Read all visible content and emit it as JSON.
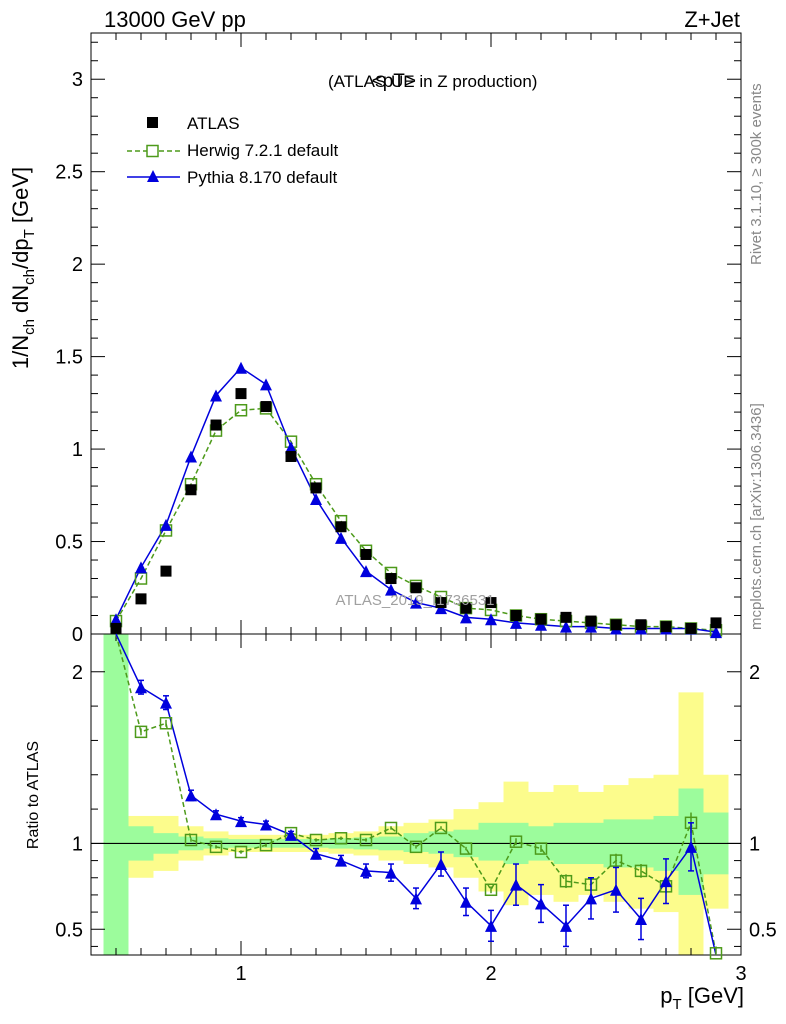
{
  "header": {
    "left": "13000 GeV pp",
    "right": "Z+Jet"
  },
  "side_labels": {
    "rivet": "Rivet 3.1.10, ≥ 300k events",
    "mcplots": "mcplots.cern.ch [arXiv:1306.3436]"
  },
  "watermark": "ATLAS_2019_I1736531",
  "colors": {
    "atlas": "#000000",
    "herwig": "#4d9a1a",
    "pythia": "#0000dd",
    "band_inner": "#9cfc9c",
    "band_outer": "#fcfc8c"
  },
  "chart_data": [
    {
      "type": "scatter",
      "panel": "main",
      "title": "<pT>",
      "subtitle": "(ATLAS UE in Z production)",
      "xlabel": "p_T [GeV]",
      "ylabel": "1/N_ch dN_ch/dp_T [GeV]",
      "xlim": [
        0.4,
        3.0
      ],
      "ylim": [
        0,
        3.25
      ],
      "yticks": [
        0,
        0.5,
        1,
        1.5,
        2,
        2.5,
        3
      ],
      "ytick_labels": [
        "0",
        "0.5",
        "1",
        "1.5",
        "2",
        "2.5",
        "3"
      ],
      "legend_placement": "top-left",
      "x": [
        0.5,
        0.6,
        0.7,
        0.8,
        0.9,
        1.0,
        1.1,
        1.2,
        1.3,
        1.4,
        1.5,
        1.6,
        1.7,
        1.8,
        1.9,
        2.0,
        2.1,
        2.2,
        2.3,
        2.4,
        2.5,
        2.6,
        2.7,
        2.8,
        2.9
      ],
      "series": [
        {
          "name": "ATLAS",
          "style": "square",
          "values": [
            0.03,
            0.19,
            0.34,
            0.78,
            1.13,
            1.3,
            1.23,
            0.96,
            0.79,
            0.58,
            0.43,
            0.3,
            0.25,
            0.17,
            0.14,
            0.17,
            0.1,
            0.08,
            0.09,
            0.07,
            0.05,
            0.05,
            0.04,
            0.03,
            0.06
          ]
        },
        {
          "name": "Herwig 7.2.1 default",
          "style": "dashed-open-square",
          "values": [
            0.07,
            0.3,
            0.56,
            0.81,
            1.1,
            1.21,
            1.22,
            1.04,
            0.81,
            0.61,
            0.45,
            0.33,
            0.26,
            0.2,
            0.14,
            0.13,
            0.1,
            0.08,
            0.07,
            0.06,
            0.05,
            0.04,
            0.04,
            0.03,
            0.02
          ]
        },
        {
          "name": "Pythia 8.170 default",
          "style": "solid-triangle",
          "values": [
            0.08,
            0.36,
            0.59,
            0.96,
            1.29,
            1.44,
            1.35,
            1.01,
            0.73,
            0.52,
            0.34,
            0.24,
            0.17,
            0.14,
            0.09,
            0.08,
            0.06,
            0.05,
            0.04,
            0.04,
            0.03,
            0.03,
            0.03,
            0.03,
            0.01
          ]
        }
      ]
    },
    {
      "type": "line",
      "panel": "ratio",
      "ylabel": "Ratio to ATLAS",
      "xlabel": "p_T [GeV]",
      "xlim": [
        0.4,
        3.0
      ],
      "ylim": [
        0.35,
        2.22
      ],
      "reference": 1.0,
      "xticks": [
        1,
        2,
        3
      ],
      "xtick_labels": [
        "1",
        "2",
        "3"
      ],
      "yticks": [
        0.5,
        1,
        2
      ],
      "ytick_labels": [
        "0.5",
        "1",
        "2"
      ],
      "bands": {
        "x_edges": [
          0.45,
          0.55,
          0.65,
          0.75,
          0.85,
          0.95,
          1.05,
          1.15,
          1.25,
          1.35,
          1.45,
          1.55,
          1.65,
          1.75,
          1.85,
          1.95,
          2.05,
          2.15,
          2.25,
          2.35,
          2.45,
          2.55,
          2.65,
          2.75,
          2.85,
          2.95
        ],
        "inner": [
          [
            0.35,
            2.22
          ],
          [
            0.9,
            1.1
          ],
          [
            0.94,
            1.06
          ],
          [
            0.96,
            1.04
          ],
          [
            0.97,
            1.03
          ],
          [
            0.975,
            1.025
          ],
          [
            0.975,
            1.025
          ],
          [
            0.975,
            1.025
          ],
          [
            0.975,
            1.025
          ],
          [
            0.97,
            1.03
          ],
          [
            0.965,
            1.035
          ],
          [
            0.96,
            1.04
          ],
          [
            0.95,
            1.06
          ],
          [
            0.94,
            1.07
          ],
          [
            0.92,
            1.08
          ],
          [
            0.9,
            1.12
          ],
          [
            0.88,
            1.12
          ],
          [
            0.9,
            1.1
          ],
          [
            0.88,
            1.12
          ],
          [
            0.88,
            1.12
          ],
          [
            0.86,
            1.14
          ],
          [
            0.86,
            1.14
          ],
          [
            0.84,
            1.16
          ],
          [
            0.7,
            1.32
          ],
          [
            0.82,
            1.18
          ]
        ],
        "outer": [
          [
            0.35,
            2.22
          ],
          [
            0.8,
            1.16
          ],
          [
            0.84,
            1.16
          ],
          [
            0.9,
            1.1
          ],
          [
            0.93,
            1.07
          ],
          [
            0.95,
            1.05
          ],
          [
            0.95,
            1.05
          ],
          [
            0.95,
            1.05
          ],
          [
            0.95,
            1.05
          ],
          [
            0.94,
            1.06
          ],
          [
            0.93,
            1.07
          ],
          [
            0.9,
            1.1
          ],
          [
            0.88,
            1.12
          ],
          [
            0.86,
            1.14
          ],
          [
            0.8,
            1.2
          ],
          [
            0.72,
            1.24
          ],
          [
            0.64,
            1.36
          ],
          [
            0.7,
            1.3
          ],
          [
            0.66,
            1.34
          ],
          [
            0.7,
            1.3
          ],
          [
            0.66,
            1.34
          ],
          [
            0.62,
            1.38
          ],
          [
            0.6,
            1.4
          ],
          [
            0.35,
            1.88
          ],
          [
            0.62,
            1.4
          ]
        ]
      },
      "x": [
        0.5,
        0.6,
        0.7,
        0.8,
        0.9,
        1.0,
        1.1,
        1.2,
        1.3,
        1.4,
        1.5,
        1.6,
        1.7,
        1.8,
        1.9,
        2.0,
        2.1,
        2.2,
        2.3,
        2.4,
        2.5,
        2.6,
        2.7,
        2.8,
        2.9
      ],
      "series": [
        {
          "name": "Herwig 7.2.1 default",
          "style": "dashed-open-square",
          "values": [
            2.4,
            1.65,
            1.7,
            1.02,
            0.98,
            0.95,
            0.99,
            1.06,
            1.02,
            1.03,
            1.02,
            1.09,
            0.98,
            1.09,
            0.97,
            0.73,
            1.01,
            0.97,
            0.78,
            0.76,
            0.9,
            0.84,
            0.75,
            1.12,
            0.36
          ],
          "errors": [
            0,
            0.02,
            0.02,
            0.01,
            0.01,
            0.01,
            0.01,
            0.01,
            0.01,
            0.01,
            0.01,
            0.01,
            0.01,
            0.01,
            0.01,
            0.02,
            0.02,
            0.02,
            0.04,
            0.03,
            0.04,
            0.04,
            0.04,
            0.06,
            0.04
          ]
        },
        {
          "name": "Pythia 8.170 default",
          "style": "solid-triangle",
          "values": [
            2.4,
            1.91,
            1.82,
            1.28,
            1.17,
            1.13,
            1.11,
            1.05,
            0.94,
            0.9,
            0.84,
            0.83,
            0.68,
            0.88,
            0.66,
            0.52,
            0.76,
            0.65,
            0.52,
            0.68,
            0.73,
            0.56,
            0.78,
            0.98,
            0.04
          ],
          "errors": [
            0,
            0.04,
            0.04,
            0.03,
            0.02,
            0.02,
            0.02,
            0.02,
            0.03,
            0.03,
            0.04,
            0.05,
            0.06,
            0.07,
            0.08,
            0.09,
            0.12,
            0.11,
            0.12,
            0.12,
            0.13,
            0.12,
            0.13,
            0.14,
            0.1
          ]
        }
      ]
    }
  ]
}
